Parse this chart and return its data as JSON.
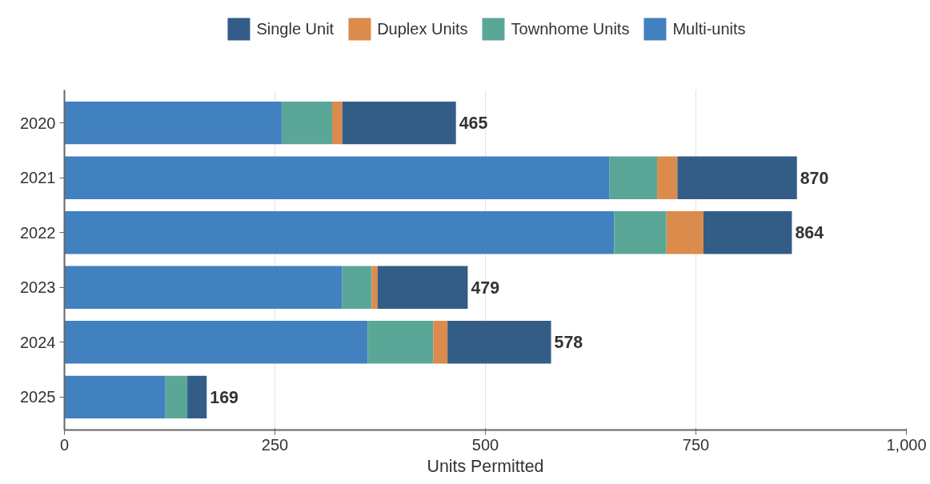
{
  "chart_data": {
    "type": "bar",
    "orientation": "horizontal",
    "stacked": true,
    "xlabel": "Units Permitted",
    "categories": [
      "2020",
      "2021",
      "2022",
      "2023",
      "2024",
      "2025"
    ],
    "series": [
      {
        "name": "Multi-units",
        "color": "#4281c0",
        "values": [
          258,
          647,
          653,
          330,
          360,
          120
        ]
      },
      {
        "name": "Townhome Units",
        "color": "#5ba797",
        "values": [
          60,
          57,
          62,
          35,
          78,
          26
        ]
      },
      {
        "name": "Duplex Units",
        "color": "#db8b4c",
        "values": [
          12,
          24,
          44,
          7,
          17,
          0
        ]
      },
      {
        "name": "Single Unit",
        "color": "#335d87",
        "values": [
          135,
          142,
          105,
          107,
          123,
          23
        ]
      }
    ],
    "totals": [
      "465",
      "870",
      "864",
      "479",
      "578",
      "169"
    ],
    "xlim": [
      0,
      1000
    ],
    "xticks": [
      0,
      {
        "value": 250,
        "label": "250"
      },
      {
        "value": 500,
        "label": "500"
      },
      {
        "value": 750,
        "label": "750"
      },
      {
        "value": 1000,
        "label": "1,000"
      }
    ],
    "grid": "x",
    "legend": "top"
  }
}
